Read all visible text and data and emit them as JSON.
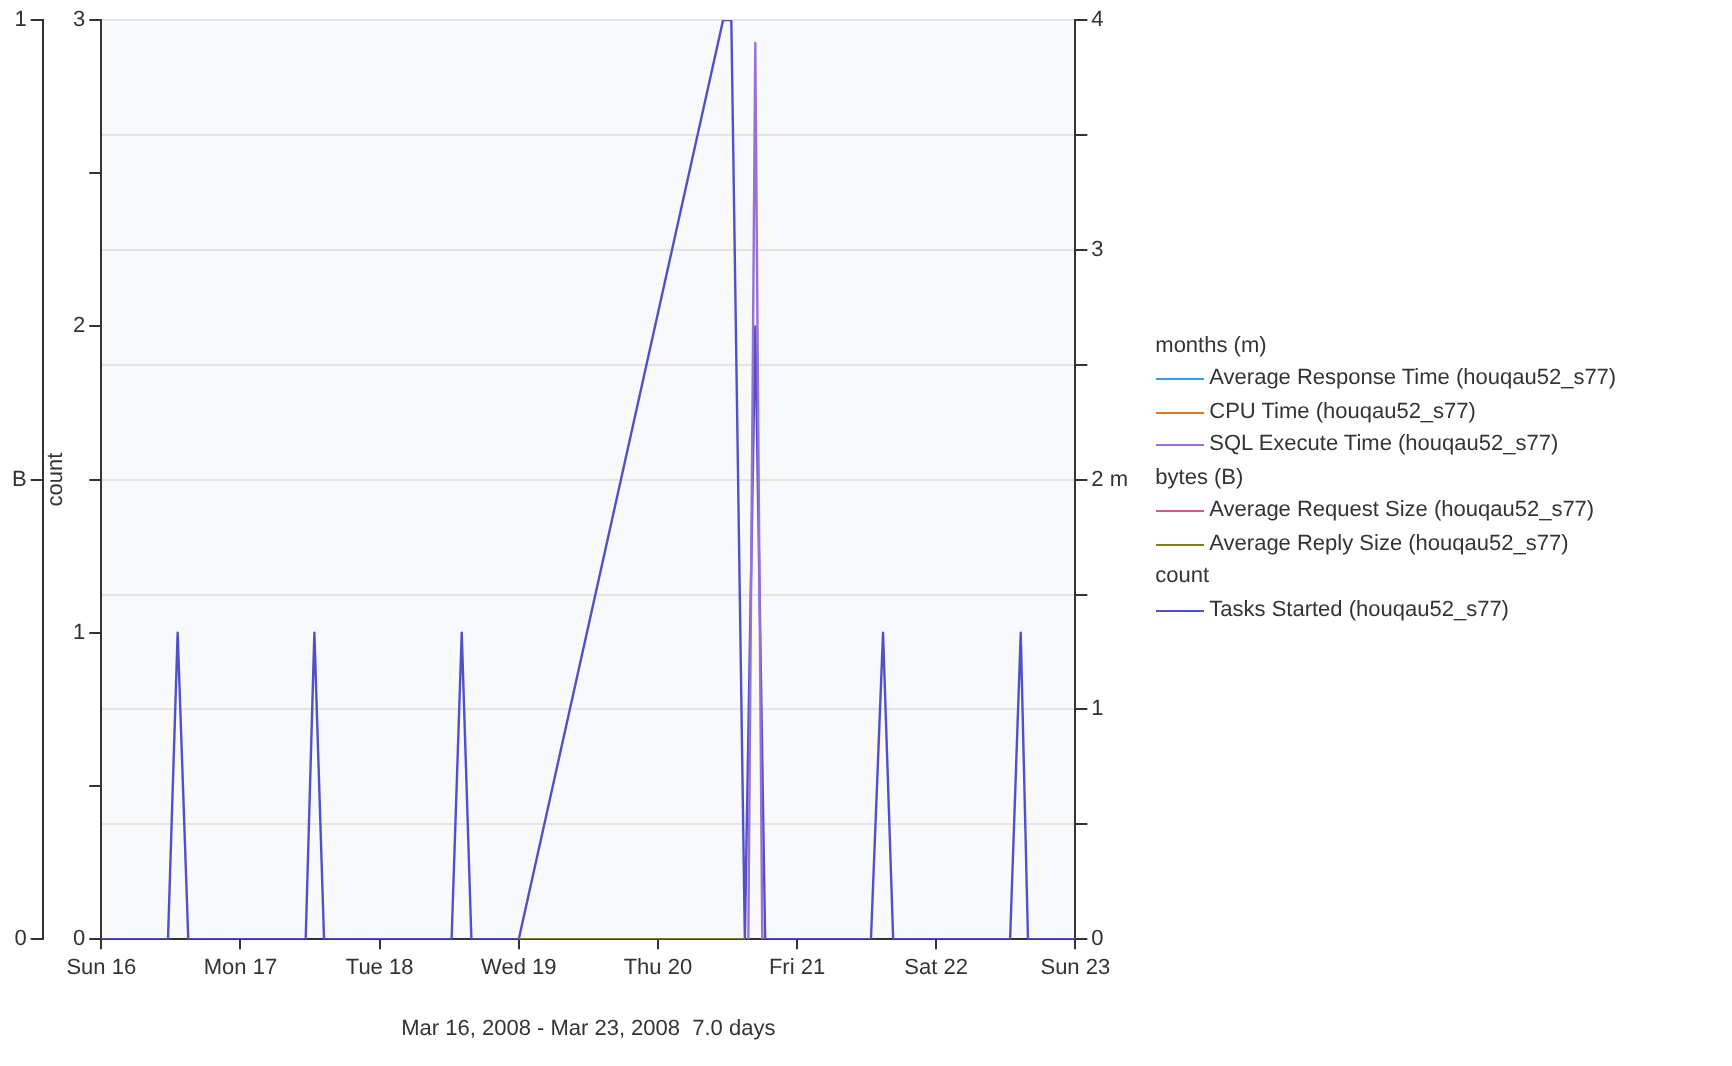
{
  "chart_data": {
    "type": "line",
    "xlabel": "Mar 16, 2008 - Mar 23, 2008  7.0 days",
    "ylabel": "count",
    "annotations": [
      "months (m)",
      "bytes (B)",
      "count"
    ],
    "xlim": [
      "2008-03-16",
      "2008-03-23"
    ],
    "xticks": [
      {
        "value": "2008-03-16",
        "label": "Sun 16"
      },
      {
        "value": "2008-03-17",
        "label": "Mon 17"
      },
      {
        "value": "2008-03-18",
        "label": "Tue 18"
      },
      {
        "value": "2008-03-19",
        "label": "Wed 19"
      },
      {
        "value": "2008-03-20",
        "label": "Thu 20"
      },
      {
        "value": "2008-03-21",
        "label": "Fri 21"
      },
      {
        "value": "2008-03-22",
        "label": "Sat 22"
      },
      {
        "value": "2008-03-23",
        "label": "Sun 23"
      }
    ],
    "ylim": [
      0,
      3
    ],
    "yticks": [
      0,
      {
        "value": 0.5,
        "label": null
      },
      1,
      {
        "value": 1.5,
        "label": null
      },
      2,
      {
        "value": 2.5,
        "label": null
      },
      3
    ],
    "y2lim": [
      0,
      4
    ],
    "y2ticks": [
      0,
      {
        "value": 0.5,
        "label": null
      },
      1,
      {
        "value": 1.5,
        "label": null
      },
      {
        "value": 2,
        "label": "2 m"
      },
      {
        "value": 2.5,
        "label": null
      },
      3,
      {
        "value": 3.5,
        "label": null
      },
      4
    ],
    "y3lim": [
      0,
      1
    ],
    "y3ticks": [
      0,
      {
        "value": 0.5,
        "label": "B"
      },
      1
    ],
    "grid": "y",
    "legend": "right",
    "series": [
      {
        "name": "Average Response Time (houqau52_s77)",
        "color": "#3399ff",
        "axis": "y2"
      },
      {
        "name": "CPU Time (houqau52_s77)",
        "color": "#e07820",
        "axis": "y2"
      },
      {
        "name": "SQL Execute Time (houqau52_s77)",
        "color": "#9a6fd6",
        "axis": "y2",
        "x": [
          "2008-03-20T15:36",
          "2008-03-20T16:48",
          "2008-03-20T18:00"
        ],
        "values": [
          0,
          3.9,
          0
        ]
      },
      {
        "name": "Average Request Size (houqau52_s77)",
        "color": "#e05080",
        "axis": "y3"
      },
      {
        "name": "Average Reply Size (houqau52_s77)",
        "color": "#808020",
        "axis": "y3",
        "x": [
          "2008-03-19",
          "2008-03-20T15:00"
        ],
        "values": [
          0,
          0
        ]
      },
      {
        "name": "Tasks Started (houqau52_s77)",
        "color": "#5050c8",
        "axis": "y",
        "x": [
          "2008-03-16",
          "2008-03-16T11:30",
          "2008-03-16T13:10",
          "2008-03-16T15:00",
          "2008-03-17T11:15",
          "2008-03-17T12:45",
          "2008-03-17T14:25",
          "2008-03-18T12:25",
          "2008-03-18T14:10",
          "2008-03-18T15:50",
          "2008-03-19",
          "2008-03-20T11:15",
          "2008-03-20T12:40",
          "2008-03-20T15:00",
          "2008-03-20T16:48",
          "2008-03-20T18:30",
          "2008-03-21T12:45",
          "2008-03-21T14:50",
          "2008-03-21T16:35",
          "2008-03-22T12:45",
          "2008-03-22T14:35",
          "2008-03-22T15:50",
          "2008-03-23"
        ],
        "values": [
          0,
          0,
          1,
          0,
          0,
          1,
          0,
          0,
          1,
          0,
          0,
          3,
          3,
          0,
          2,
          0,
          0,
          1,
          0,
          0,
          1,
          0,
          0
        ]
      }
    ]
  }
}
